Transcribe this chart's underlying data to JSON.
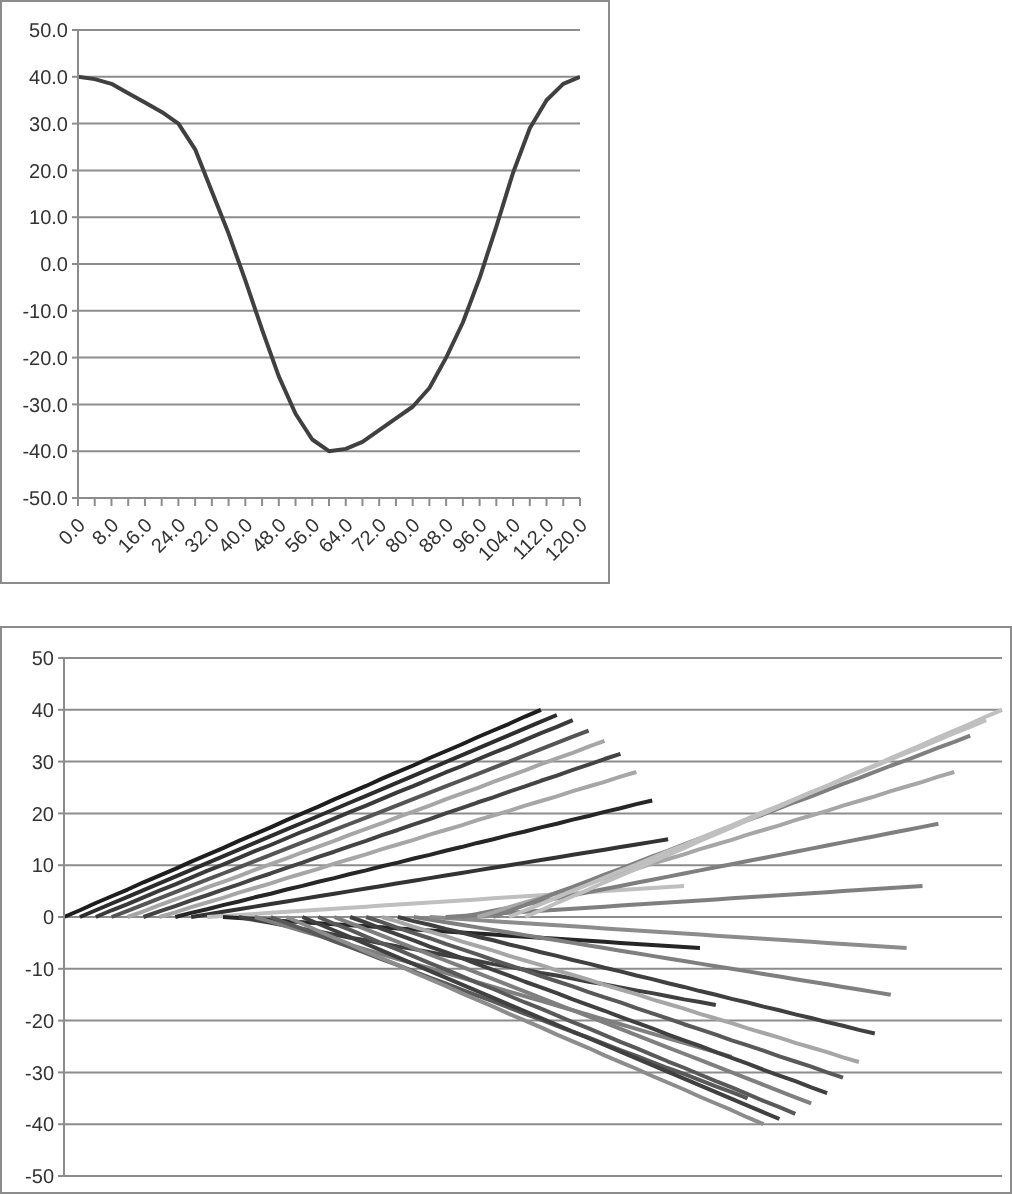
{
  "chart_data": [
    {
      "type": "line",
      "x": [
        0,
        4,
        8,
        12,
        16,
        20,
        24,
        28,
        32,
        36,
        40,
        44,
        48,
        52,
        56,
        60,
        64,
        68,
        72,
        76,
        80,
        84,
        88,
        92,
        96,
        100,
        104,
        108,
        112,
        116,
        120
      ],
      "values": [
        40,
        39.5,
        38.5,
        36.5,
        34.5,
        32.5,
        30,
        24.5,
        15.5,
        6.5,
        -3.5,
        -14,
        -24,
        -32,
        -37.5,
        -40,
        -39.5,
        -38,
        -35.5,
        -33,
        -30.5,
        -26.5,
        -20,
        -12.5,
        -3,
        8,
        19.5,
        29,
        35,
        38.5,
        40
      ],
      "color": "#404040",
      "marker": "none",
      "xlim": [
        0,
        120
      ],
      "xticks": [
        {
          "value": 0,
          "label": "0.0"
        },
        {
          "value": 4,
          "label": null
        },
        {
          "value": 8,
          "label": "8.0"
        },
        {
          "value": 12,
          "label": null
        },
        {
          "value": 16,
          "label": "16.0"
        },
        {
          "value": 20,
          "label": null
        },
        {
          "value": 24,
          "label": "24.0"
        },
        {
          "value": 28,
          "label": null
        },
        {
          "value": 32,
          "label": "32.0"
        },
        {
          "value": 36,
          "label": null
        },
        {
          "value": 40,
          "label": "40.0"
        },
        {
          "value": 44,
          "label": null
        },
        {
          "value": 48,
          "label": "48.0"
        },
        {
          "value": 52,
          "label": null
        },
        {
          "value": 56,
          "label": "56.0"
        },
        {
          "value": 60,
          "label": null
        },
        {
          "value": 64,
          "label": "64.0"
        },
        {
          "value": 68,
          "label": null
        },
        {
          "value": 72,
          "label": "72.0"
        },
        {
          "value": 76,
          "label": null
        },
        {
          "value": 80,
          "label": "80.0"
        },
        {
          "value": 84,
          "label": null
        },
        {
          "value": 88,
          "label": "88.0"
        },
        {
          "value": 92,
          "label": null
        },
        {
          "value": 96,
          "label": "96.0"
        },
        {
          "value": 100,
          "label": null
        },
        {
          "value": 104,
          "label": "104.0"
        },
        {
          "value": 108,
          "label": null
        },
        {
          "value": 112,
          "label": "112.0"
        },
        {
          "value": 116,
          "label": null
        },
        {
          "value": 120,
          "label": "120.0"
        }
      ],
      "ylim": [
        -50,
        50
      ],
      "yticks": [
        {
          "value": -50,
          "label": "-50.0"
        },
        {
          "value": -40,
          "label": "-40.0"
        },
        {
          "value": -30,
          "label": "-30.0"
        },
        {
          "value": -20,
          "label": "-20.0"
        },
        {
          "value": -10,
          "label": "-10.0"
        },
        {
          "value": 0,
          "label": "0.0"
        },
        {
          "value": 10,
          "label": "10.0"
        },
        {
          "value": 20,
          "label": "20.0"
        },
        {
          "value": 30,
          "label": "30.0"
        },
        {
          "value": 40,
          "label": "40.0"
        },
        {
          "value": 50,
          "label": "50.0"
        }
      ],
      "grid": "y"
    },
    {
      "type": "line",
      "marker": "none",
      "grid": "y",
      "tick_labels": "y",
      "categories": [
        null,
        null,
        null,
        null,
        null,
        null,
        null,
        null,
        null,
        null,
        null,
        null,
        null,
        null,
        null,
        null,
        null,
        null,
        null,
        null,
        null,
        null,
        null,
        null,
        null,
        null,
        null,
        null,
        null,
        null,
        null,
        null,
        null,
        null,
        null,
        null,
        null,
        null,
        null,
        null,
        null,
        null,
        null,
        null,
        null,
        null,
        null,
        null,
        null,
        null,
        null,
        null,
        null,
        null,
        null,
        null,
        null,
        null,
        null,
        null
      ],
      "ylim": [
        -50,
        50
      ],
      "yticks": [
        -50,
        -40,
        -30,
        -20,
        -10,
        0,
        10,
        20,
        30,
        40,
        50
      ],
      "series": [
        {
          "color": "#1e1e1e",
          "values": [
            0,
            1.3,
            2.7,
            4,
            5.3,
            6.7,
            8,
            9.3,
            10.7,
            12,
            13.3,
            14.7,
            16,
            17.3,
            18.7,
            20,
            21.3,
            22.7,
            24,
            25.3,
            26.7,
            28,
            29.3,
            30.7,
            32,
            33.3,
            34.7,
            36,
            37.3,
            38.7,
            40,
            null,
            null,
            null,
            null,
            null,
            null,
            null,
            null,
            null,
            null,
            null,
            null,
            null,
            null,
            null,
            null,
            null,
            null,
            null,
            null,
            null,
            null,
            null,
            null,
            null,
            null,
            null,
            null,
            null
          ]
        },
        {
          "color": "#2d2d2d",
          "values": [
            null,
            0,
            1.3,
            2.6,
            3.9,
            5.2,
            6.5,
            7.8,
            9.1,
            10.4,
            11.7,
            13,
            14.3,
            15.6,
            16.9,
            18.2,
            19.5,
            20.8,
            22.1,
            23.4,
            24.7,
            26,
            27.3,
            28.6,
            29.9,
            31.2,
            32.5,
            33.8,
            35.1,
            36.4,
            37.7,
            39,
            null,
            null,
            null,
            null,
            null,
            null,
            null,
            null,
            null,
            null,
            null,
            null,
            null,
            null,
            null,
            null,
            null,
            null,
            null,
            null,
            null,
            null,
            null,
            null,
            null,
            null,
            null,
            null
          ]
        },
        {
          "color": "#3a3a3a",
          "values": [
            null,
            null,
            0,
            1.3,
            2.5,
            3.8,
            5.1,
            6.3,
            7.6,
            8.9,
            10.1,
            11.4,
            12.7,
            13.9,
            15.2,
            16.5,
            17.7,
            19,
            20.3,
            21.5,
            22.8,
            24.1,
            25.3,
            26.6,
            27.9,
            29.1,
            30.4,
            31.7,
            32.9,
            34.2,
            35.5,
            36.7,
            38,
            null,
            null,
            null,
            null,
            null,
            null,
            null,
            null,
            null,
            null,
            null,
            null,
            null,
            null,
            null,
            null,
            null,
            null,
            null,
            null,
            null,
            null,
            null,
            null,
            null,
            null,
            null
          ]
        },
        {
          "color": "#555555",
          "values": [
            null,
            null,
            null,
            0,
            1.2,
            2.4,
            3.6,
            4.8,
            6,
            7.2,
            8.4,
            9.6,
            10.8,
            12,
            13.2,
            14.4,
            15.6,
            16.8,
            18,
            19.2,
            20.4,
            21.6,
            22.8,
            24,
            25.2,
            26.4,
            27.6,
            28.8,
            30,
            31.2,
            32.4,
            33.6,
            34.8,
            36,
            null,
            null,
            null,
            null,
            null,
            null,
            null,
            null,
            null,
            null,
            null,
            null,
            null,
            null,
            null,
            null,
            null,
            null,
            null,
            null,
            null,
            null,
            null,
            null,
            null,
            null
          ]
        },
        {
          "color": "#a6a6a6",
          "values": [
            null,
            null,
            null,
            null,
            0,
            1.1,
            2.3,
            3.4,
            4.5,
            5.7,
            6.8,
            7.9,
            9.1,
            10.2,
            11.3,
            12.5,
            13.6,
            14.7,
            15.9,
            17,
            18.1,
            19.3,
            20.4,
            21.5,
            22.7,
            23.8,
            24.9,
            26.1,
            27.2,
            28.3,
            29.5,
            30.6,
            31.7,
            32.9,
            34,
            null,
            null,
            null,
            null,
            null,
            null,
            null,
            null,
            null,
            null,
            null,
            null,
            null,
            null,
            null,
            null,
            null,
            null,
            null,
            null,
            null,
            null,
            null,
            null,
            null
          ]
        },
        {
          "color": "#444444",
          "values": [
            null,
            null,
            null,
            null,
            null,
            0,
            1.1,
            2.1,
            3.2,
            4.2,
            5.3,
            6.3,
            7.4,
            8.4,
            9.5,
            10.5,
            11.6,
            12.6,
            13.7,
            14.7,
            15.8,
            16.8,
            17.9,
            18.9,
            20,
            21,
            22.1,
            23.1,
            24.2,
            25.2,
            26.3,
            27.3,
            28.4,
            29.4,
            30.5,
            31.5,
            null,
            null,
            null,
            null,
            null,
            null,
            null,
            null,
            null,
            null,
            null,
            null,
            null,
            null,
            null,
            null,
            null,
            null,
            null,
            null,
            null,
            null,
            null,
            null
          ]
        },
        {
          "color": "#a6a6a6",
          "values": [
            null,
            null,
            null,
            null,
            null,
            null,
            0,
            0.9,
            1.9,
            2.8,
            3.7,
            4.7,
            5.6,
            6.5,
            7.5,
            8.4,
            9.3,
            10.3,
            11.2,
            12.1,
            13.1,
            14,
            14.9,
            15.9,
            16.8,
            17.7,
            18.7,
            19.6,
            20.5,
            21.5,
            22.4,
            23.3,
            24.3,
            25.2,
            26.1,
            27.1,
            28,
            null,
            null,
            null,
            null,
            null,
            null,
            null,
            null,
            null,
            null,
            null,
            null,
            null,
            null,
            null,
            null,
            null,
            null,
            null,
            null,
            null,
            null,
            null
          ]
        },
        {
          "color": "#262626",
          "values": [
            null,
            null,
            null,
            null,
            null,
            null,
            null,
            0,
            0.8,
            1.5,
            2.3,
            3,
            3.8,
            4.5,
            5.3,
            6,
            6.8,
            7.5,
            8.3,
            9,
            9.8,
            10.5,
            11.3,
            12,
            12.8,
            13.5,
            14.3,
            15,
            15.8,
            16.5,
            17.3,
            18,
            18.8,
            19.5,
            20.3,
            21,
            21.8,
            22.5,
            null,
            null,
            null,
            null,
            null,
            null,
            null,
            null,
            null,
            null,
            null,
            null,
            null,
            null,
            null,
            null,
            null,
            null,
            null,
            null,
            null,
            null
          ]
        },
        {
          "color": "#333333",
          "values": [
            null,
            null,
            null,
            null,
            null,
            null,
            null,
            null,
            0,
            0.5,
            1,
            1.5,
            2,
            2.5,
            3,
            3.5,
            4,
            4.5,
            5,
            5.5,
            6,
            6.5,
            7,
            7.5,
            8,
            8.5,
            9,
            9.5,
            10,
            10.5,
            11,
            11.5,
            12,
            12.5,
            13,
            13.5,
            14,
            14.5,
            15,
            null,
            null,
            null,
            null,
            null,
            null,
            null,
            null,
            null,
            null,
            null,
            null,
            null,
            null,
            null,
            null,
            null,
            null,
            null,
            null,
            null
          ]
        },
        {
          "color": "#bfbfbf",
          "values": [
            null,
            null,
            null,
            null,
            null,
            null,
            null,
            null,
            null,
            0,
            0.2,
            0.4,
            0.6,
            0.8,
            1,
            1.2,
            1.4,
            1.6,
            1.8,
            2,
            2.2,
            2.4,
            2.6,
            2.8,
            3,
            3.2,
            3.4,
            3.6,
            3.8,
            4,
            4.2,
            4.4,
            4.6,
            4.8,
            5,
            5.2,
            5.4,
            5.6,
            5.8,
            6,
            null,
            null,
            null,
            null,
            null,
            null,
            null,
            null,
            null,
            null,
            null,
            null,
            null,
            null,
            null,
            null,
            null,
            null,
            null,
            null
          ]
        },
        {
          "color": "#262626",
          "values": [
            null,
            null,
            null,
            null,
            null,
            null,
            null,
            null,
            null,
            null,
            0,
            -0.2,
            -0.4,
            -0.6,
            -0.8,
            -1,
            -1.2,
            -1.4,
            -1.6,
            -1.8,
            -2,
            -2.2,
            -2.4,
            -2.6,
            -2.8,
            -3,
            -3.2,
            -3.4,
            -3.6,
            -3.8,
            -4,
            -4.2,
            -4.4,
            -4.6,
            -4.8,
            -5,
            -5.2,
            -5.4,
            -5.6,
            -5.8,
            -6,
            null,
            null,
            null,
            null,
            null,
            null,
            null,
            null,
            null,
            null,
            null,
            null,
            null,
            null,
            null,
            null,
            null,
            null,
            null
          ]
        },
        {
          "color": "#404040",
          "values": [
            null,
            null,
            null,
            null,
            null,
            null,
            null,
            null,
            null,
            null,
            null,
            0,
            -0.6,
            -1.1,
            -1.7,
            -2.3,
            -2.8,
            -3.4,
            -4,
            -4.5,
            -5.1,
            -5.7,
            -6.2,
            -6.8,
            -7.4,
            -7.9,
            -8.5,
            -9.1,
            -9.6,
            -10.2,
            -10.8,
            -11.3,
            -11.9,
            -12.5,
            -13,
            -13.6,
            -14.2,
            -14.7,
            -15.3,
            -15.9,
            -16.4,
            -17,
            null,
            null,
            null,
            null,
            null,
            null,
            null,
            null,
            null,
            null,
            null,
            null,
            null,
            null,
            null,
            null,
            null,
            null
          ]
        },
        {
          "color": "#7f7f7f",
          "values": [
            null,
            null,
            null,
            null,
            null,
            null,
            null,
            null,
            null,
            null,
            null,
            null,
            0,
            -0.9,
            -1.8,
            -2.7,
            -3.6,
            -4.5,
            -5.4,
            -6.3,
            -7.2,
            -8.1,
            -9,
            -9.9,
            -10.8,
            -11.7,
            -12.6,
            -13.5,
            -14.4,
            -15.3,
            -16.2,
            -17.1,
            -18,
            -18.9,
            -19.8,
            -20.7,
            -21.6,
            -22.5,
            -23.4,
            -24.3,
            -25.2,
            -26.1,
            -27,
            null,
            null,
            null,
            null,
            null,
            null,
            null,
            null,
            null,
            null,
            null,
            null,
            null,
            null,
            null,
            null,
            null
          ]
        },
        {
          "color": "#595959",
          "values": [
            null,
            null,
            null,
            null,
            null,
            null,
            null,
            null,
            null,
            null,
            null,
            null,
            null,
            0,
            -1.2,
            -2.3,
            -3.5,
            -4.7,
            -5.8,
            -7,
            -8.2,
            -9.3,
            -10.5,
            -11.7,
            -12.8,
            -14,
            -15.2,
            -16.3,
            -17.5,
            -18.7,
            -19.8,
            -21,
            -22.2,
            -23.3,
            -24.5,
            -25.7,
            -26.8,
            -28,
            -29.2,
            -30.3,
            -31.5,
            -32.7,
            -33.8,
            -35,
            null,
            null,
            null,
            null,
            null,
            null,
            null,
            null,
            null,
            null,
            null,
            null,
            null,
            null,
            null,
            null
          ]
        },
        {
          "color": "#8c8c8c",
          "values": [
            null,
            null,
            null,
            null,
            null,
            null,
            null,
            null,
            null,
            null,
            null,
            null,
            null,
            null,
            0,
            -1.3,
            -2.7,
            -4,
            -5.3,
            -6.7,
            -8,
            -9.3,
            -10.7,
            -12,
            -13.3,
            -14.7,
            -16,
            -17.3,
            -18.7,
            -20,
            -21.3,
            -22.7,
            -24,
            -25.3,
            -26.7,
            -28,
            -29.3,
            -30.7,
            -32,
            -33.3,
            -34.7,
            -36,
            -37.3,
            -38.7,
            -40,
            null,
            null,
            null,
            null,
            null,
            null,
            null,
            null,
            null,
            null,
            null,
            null,
            null,
            null,
            null
          ]
        },
        {
          "color": "#404040",
          "values": [
            null,
            null,
            null,
            null,
            null,
            null,
            null,
            null,
            null,
            null,
            null,
            null,
            null,
            null,
            null,
            0,
            -1.3,
            -2.6,
            -3.9,
            -5.2,
            -6.5,
            -7.8,
            -9.1,
            -10.4,
            -11.7,
            -13,
            -14.3,
            -15.6,
            -16.9,
            -18.2,
            -19.5,
            -20.8,
            -22.1,
            -23.4,
            -24.7,
            -26,
            -27.3,
            -28.6,
            -29.9,
            -31.2,
            -32.5,
            -33.8,
            -35.1,
            -36.4,
            -37.7,
            -39,
            null,
            null,
            null,
            null,
            null,
            null,
            null,
            null,
            null,
            null,
            null,
            null,
            null,
            null
          ]
        },
        {
          "color": "#595959",
          "values": [
            null,
            null,
            null,
            null,
            null,
            null,
            null,
            null,
            null,
            null,
            null,
            null,
            null,
            null,
            null,
            null,
            0,
            -1.3,
            -2.5,
            -3.8,
            -5.1,
            -6.3,
            -7.6,
            -8.9,
            -10.1,
            -11.4,
            -12.7,
            -13.9,
            -15.2,
            -16.5,
            -17.7,
            -19,
            -20.3,
            -21.5,
            -22.8,
            -24.1,
            -25.3,
            -26.6,
            -27.9,
            -29.1,
            -30.4,
            -31.7,
            -32.9,
            -34.2,
            -35.5,
            -36.7,
            -38,
            null,
            null,
            null,
            null,
            null,
            null,
            null,
            null,
            null,
            null,
            null,
            null,
            null
          ]
        },
        {
          "color": "#7f7f7f",
          "values": [
            null,
            null,
            null,
            null,
            null,
            null,
            null,
            null,
            null,
            null,
            null,
            null,
            null,
            null,
            null,
            null,
            null,
            0,
            -1.2,
            -2.4,
            -3.6,
            -4.8,
            -6,
            -7.2,
            -8.4,
            -9.6,
            -10.8,
            -12,
            -13.2,
            -14.4,
            -15.6,
            -16.8,
            -18,
            -19.2,
            -20.4,
            -21.6,
            -22.8,
            -24,
            -25.2,
            -26.4,
            -27.6,
            -28.8,
            -30,
            -31.2,
            -32.4,
            -33.6,
            -34.8,
            -36,
            null,
            null,
            null,
            null,
            null,
            null,
            null,
            null,
            null,
            null,
            null,
            null
          ]
        },
        {
          "color": "#404040",
          "values": [
            null,
            null,
            null,
            null,
            null,
            null,
            null,
            null,
            null,
            null,
            null,
            null,
            null,
            null,
            null,
            null,
            null,
            null,
            0,
            -1.1,
            -2.3,
            -3.4,
            -4.5,
            -5.7,
            -6.8,
            -7.9,
            -9.1,
            -10.2,
            -11.3,
            -12.5,
            -13.6,
            -14.7,
            -15.9,
            -17,
            -18.1,
            -19.3,
            -20.4,
            -21.5,
            -22.7,
            -23.8,
            -24.9,
            -26.1,
            -27.2,
            -28.3,
            -29.5,
            -30.6,
            -31.7,
            -32.9,
            -34,
            null,
            null,
            null,
            null,
            null,
            null,
            null,
            null,
            null,
            null,
            null
          ]
        },
        {
          "color": "#595959",
          "values": [
            null,
            null,
            null,
            null,
            null,
            null,
            null,
            null,
            null,
            null,
            null,
            null,
            null,
            null,
            null,
            null,
            null,
            null,
            null,
            0,
            -1,
            -2.1,
            -3.1,
            -4.1,
            -5.2,
            -6.2,
            -7.2,
            -8.3,
            -9.3,
            -10.3,
            -11.4,
            -12.4,
            -13.4,
            -14.5,
            -15.5,
            -16.5,
            -17.6,
            -18.6,
            -19.6,
            -20.7,
            -21.7,
            -22.7,
            -23.8,
            -24.8,
            -25.8,
            -26.9,
            -27.9,
            -28.9,
            -30,
            -31,
            null,
            null,
            null,
            null,
            null,
            null,
            null,
            null,
            null,
            null
          ]
        },
        {
          "color": "#a6a6a6",
          "values": [
            null,
            null,
            null,
            null,
            null,
            null,
            null,
            null,
            null,
            null,
            null,
            null,
            null,
            null,
            null,
            null,
            null,
            null,
            null,
            null,
            0,
            -0.9,
            -1.9,
            -2.8,
            -3.7,
            -4.7,
            -5.6,
            -6.5,
            -7.5,
            -8.4,
            -9.3,
            -10.3,
            -11.2,
            -12.1,
            -13.1,
            -14,
            -14.9,
            -15.9,
            -16.8,
            -17.7,
            -18.7,
            -19.6,
            -20.5,
            -21.5,
            -22.4,
            -23.3,
            -24.3,
            -25.2,
            -26.1,
            -27.1,
            -28,
            null,
            null,
            null,
            null,
            null,
            null,
            null,
            null,
            null
          ]
        },
        {
          "color": "#404040",
          "values": [
            null,
            null,
            null,
            null,
            null,
            null,
            null,
            null,
            null,
            null,
            null,
            null,
            null,
            null,
            null,
            null,
            null,
            null,
            null,
            null,
            null,
            0,
            -0.8,
            -1.5,
            -2.3,
            -3,
            -3.8,
            -4.5,
            -5.3,
            -6,
            -6.8,
            -7.5,
            -8.3,
            -9,
            -9.8,
            -10.5,
            -11.3,
            -12,
            -12.8,
            -13.5,
            -14.3,
            -15,
            -15.8,
            -16.5,
            -17.3,
            -18,
            -18.8,
            -19.5,
            -20.3,
            -21,
            -21.8,
            -22.5,
            null,
            null,
            null,
            null,
            null,
            null,
            null,
            null
          ]
        },
        {
          "color": "#7f7f7f",
          "values": [
            null,
            null,
            null,
            null,
            null,
            null,
            null,
            null,
            null,
            null,
            null,
            null,
            null,
            null,
            null,
            null,
            null,
            null,
            null,
            null,
            null,
            null,
            0,
            -0.5,
            -1,
            -1.5,
            -2,
            -2.5,
            -3,
            -3.5,
            -4,
            -4.5,
            -5,
            -5.5,
            -6,
            -6.5,
            -7,
            -7.5,
            -8,
            -8.5,
            -9,
            -9.5,
            -10,
            -10.5,
            -11,
            -11.5,
            -12,
            -12.5,
            -13,
            -13.5,
            -14,
            -14.5,
            -15,
            null,
            null,
            null,
            null,
            null,
            null,
            null
          ]
        },
        {
          "color": "#8c8c8c",
          "values": [
            null,
            null,
            null,
            null,
            null,
            null,
            null,
            null,
            null,
            null,
            null,
            null,
            null,
            null,
            null,
            null,
            null,
            null,
            null,
            null,
            null,
            null,
            null,
            0,
            -0.2,
            -0.4,
            -0.6,
            -0.8,
            -1,
            -1.2,
            -1.4,
            -1.6,
            -1.8,
            -2,
            -2.2,
            -2.4,
            -2.6,
            -2.8,
            -3,
            -3.2,
            -3.4,
            -3.6,
            -3.8,
            -4,
            -4.2,
            -4.4,
            -4.6,
            -4.8,
            -5,
            -5.2,
            -5.4,
            -5.6,
            -5.8,
            -6,
            null,
            null,
            null,
            null,
            null,
            null
          ]
        },
        {
          "color": "#7f7f7f",
          "values": [
            null,
            null,
            null,
            null,
            null,
            null,
            null,
            null,
            null,
            null,
            null,
            null,
            null,
            null,
            null,
            null,
            null,
            null,
            null,
            null,
            null,
            null,
            null,
            null,
            0,
            0.2,
            0.4,
            0.6,
            0.8,
            1,
            1.2,
            1.4,
            1.6,
            1.8,
            2,
            2.2,
            2.4,
            2.6,
            2.8,
            3,
            3.2,
            3.4,
            3.6,
            3.8,
            4,
            4.2,
            4.4,
            4.6,
            4.8,
            5,
            5.2,
            5.4,
            5.6,
            5.8,
            6,
            null,
            null,
            null,
            null,
            null
          ]
        },
        {
          "color": "#7f7f7f",
          "values": [
            null,
            null,
            null,
            null,
            null,
            null,
            null,
            null,
            null,
            null,
            null,
            null,
            null,
            null,
            null,
            null,
            null,
            null,
            null,
            null,
            null,
            null,
            null,
            null,
            null,
            0,
            0.6,
            1.2,
            1.8,
            2.4,
            3,
            3.6,
            4.2,
            4.8,
            5.4,
            6,
            6.6,
            7.2,
            7.8,
            8.4,
            9,
            9.6,
            10.2,
            10.8,
            11.4,
            12,
            12.6,
            13.2,
            13.8,
            14.4,
            15,
            15.6,
            16.2,
            16.8,
            17.4,
            18,
            null,
            null,
            null,
            null
          ]
        },
        {
          "color": "#a6a6a6",
          "values": [
            null,
            null,
            null,
            null,
            null,
            null,
            null,
            null,
            null,
            null,
            null,
            null,
            null,
            null,
            null,
            null,
            null,
            null,
            null,
            null,
            null,
            null,
            null,
            null,
            null,
            null,
            0,
            0.9,
            1.9,
            2.8,
            3.7,
            4.7,
            5.6,
            6.5,
            7.5,
            8.4,
            9.3,
            10.3,
            11.2,
            12.1,
            13.1,
            14,
            14.9,
            15.9,
            16.8,
            17.7,
            18.7,
            19.6,
            20.5,
            21.5,
            22.4,
            23.3,
            24.3,
            25.2,
            26.1,
            27.1,
            28,
            null,
            null,
            null
          ]
        },
        {
          "color": "#7f7f7f",
          "values": [
            null,
            null,
            null,
            null,
            null,
            null,
            null,
            null,
            null,
            null,
            null,
            null,
            null,
            null,
            null,
            null,
            null,
            null,
            null,
            null,
            null,
            null,
            null,
            null,
            null,
            null,
            null,
            0,
            1.2,
            2.3,
            3.5,
            4.7,
            5.8,
            7,
            8.2,
            9.3,
            10.5,
            11.7,
            12.8,
            14,
            15.2,
            16.3,
            17.5,
            18.7,
            19.8,
            21,
            22.2,
            23.3,
            24.5,
            25.7,
            26.8,
            28,
            29.2,
            30.3,
            31.5,
            32.7,
            33.8,
            35,
            null,
            null
          ]
        },
        {
          "color": "#bfbfbf",
          "values": [
            null,
            null,
            null,
            null,
            null,
            null,
            null,
            null,
            null,
            null,
            null,
            null,
            null,
            null,
            null,
            null,
            null,
            null,
            null,
            null,
            null,
            null,
            null,
            null,
            null,
            null,
            null,
            null,
            0,
            1.3,
            2.5,
            3.8,
            5.1,
            6.3,
            7.6,
            8.9,
            10.1,
            11.4,
            12.7,
            13.9,
            15.2,
            16.5,
            17.7,
            19,
            20.3,
            21.5,
            22.8,
            24.1,
            25.3,
            26.6,
            27.9,
            29.1,
            30.4,
            31.7,
            32.9,
            34.2,
            35.5,
            36.7,
            38,
            null
          ]
        },
        {
          "color": "#bfbfbf",
          "values": [
            null,
            null,
            null,
            null,
            null,
            null,
            null,
            null,
            null,
            null,
            null,
            null,
            null,
            null,
            null,
            null,
            null,
            null,
            null,
            null,
            null,
            null,
            null,
            null,
            null,
            null,
            null,
            null,
            null,
            0,
            1.3,
            2.7,
            4,
            5.3,
            6.7,
            8,
            9.3,
            10.7,
            12,
            13.3,
            14.7,
            16,
            17.3,
            18.7,
            20,
            21.3,
            22.7,
            24,
            25.3,
            26.7,
            28,
            29.3,
            30.7,
            32,
            33.3,
            34.7,
            36,
            37.3,
            38.7,
            40
          ]
        }
      ]
    }
  ]
}
